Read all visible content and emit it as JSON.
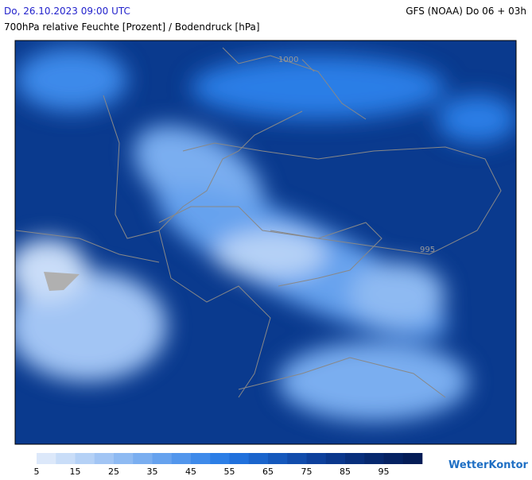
{
  "header": {
    "date": "Do, 26.10.2023 09:00 UTC",
    "model": "GFS (NOAA) Do 06 + 03h",
    "subtitle": "700hPa relative Feuchte [Prozent] / Bodendruck [hPa]"
  },
  "map": {
    "isobar_labels": [
      "1000",
      "995"
    ]
  },
  "legend": {
    "labels": [
      5,
      15,
      25,
      35,
      45,
      55,
      65,
      75,
      85,
      95
    ],
    "colors": [
      "#dce8fa",
      "#c9ddf8",
      "#b5d1f6",
      "#a2c5f4",
      "#8ebaf2",
      "#7aaef0",
      "#66a2ee",
      "#5296ec",
      "#3e8aea",
      "#2c7ee6",
      "#2070dc",
      "#1a64cc",
      "#1558bc",
      "#114cac",
      "#0d409c",
      "#0a378c",
      "#082f7c",
      "#06286e",
      "#052262",
      "#041c56"
    ]
  },
  "logo": "WetterKontor"
}
